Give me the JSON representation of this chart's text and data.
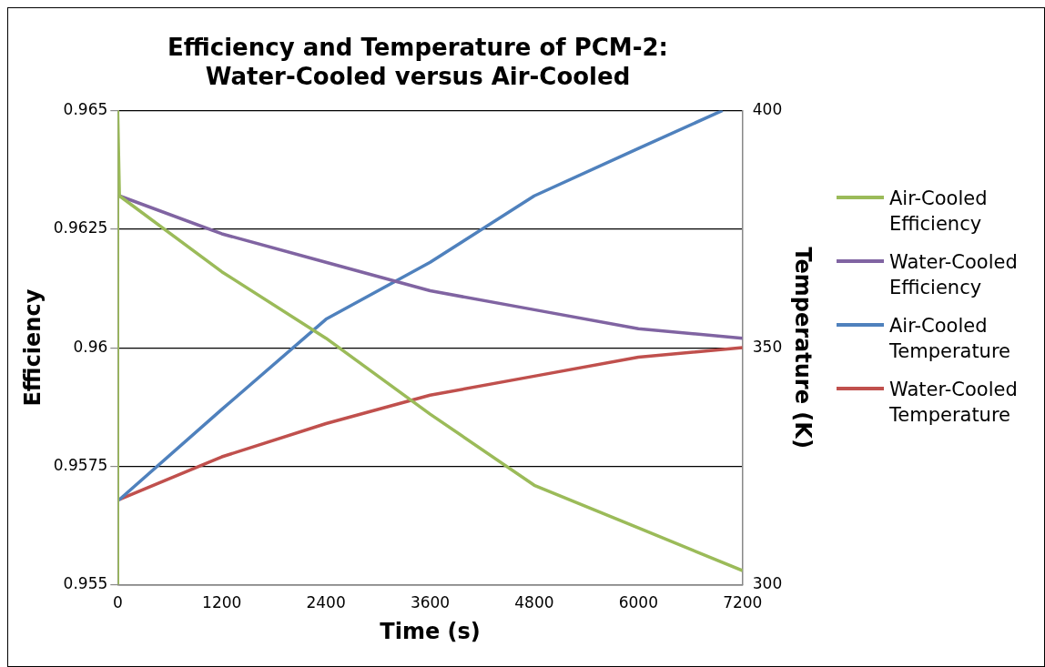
{
  "chart_data": {
    "type": "line",
    "title": "Efficiency and Temperature of PCM-2: Water-Cooled versus Air-Cooled",
    "xlabel": "Time (s)",
    "ylabel": "Efficiency",
    "y2label": "Temperature (K)",
    "xlim": [
      0,
      7200
    ],
    "xticks": [
      0,
      1200,
      2400,
      3600,
      4800,
      6000,
      7200
    ],
    "ylim": [
      0.955,
      0.965
    ],
    "yticks": [
      0.955,
      0.9575,
      0.96,
      0.9625,
      0.965
    ],
    "y2lim": [
      300,
      400
    ],
    "y2ticks": [
      300,
      350,
      400
    ],
    "grid": "y",
    "legend": "right",
    "marker": "none",
    "line_style": "solid",
    "series": [
      {
        "name": "Air-Cooled Efficiency",
        "color": "#9bbb59",
        "x": [
          0,
          0,
          20,
          1200,
          2400,
          3600,
          4800,
          6000,
          7200
        ],
        "values": [
          0.955,
          0.965,
          0.9632,
          0.9616,
          0.9602,
          0.9586,
          0.9571,
          0.9562,
          0.9553
        ]
      },
      {
        "name": "Water-Cooled Efficiency",
        "color": "#8064a2",
        "x": [
          0,
          0,
          20,
          1200,
          2400,
          3600,
          4800,
          6000,
          7200
        ],
        "values": [
          0.955,
          0.9632,
          0.9632,
          0.9624,
          0.9618,
          0.9612,
          0.9608,
          0.9604,
          0.9602
        ]
      },
      {
        "name": "Air-Cooled Temperature",
        "color": "#4f81bd",
        "axis": "y2",
        "x": [
          0,
          0,
          20,
          1200,
          2400,
          3600,
          4800,
          6000,
          6970
        ],
        "values": [
          300,
          318,
          318,
          337,
          356,
          368,
          382,
          392,
          400
        ]
      },
      {
        "name": "Water-Cooled Temperature",
        "color": "#c0504d",
        "axis": "y2",
        "x": [
          0,
          0,
          20,
          1200,
          2400,
          3600,
          4800,
          6000,
          7200
        ],
        "values": [
          300,
          318,
          318,
          327,
          334,
          340,
          344,
          348,
          350
        ]
      }
    ]
  }
}
